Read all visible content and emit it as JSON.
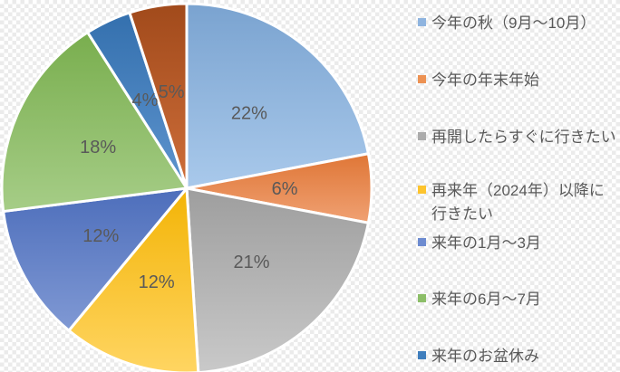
{
  "background": {
    "base_color": "#ffffff",
    "checker_color": "#ebebeb"
  },
  "text": {
    "percent_label_color": "#595959",
    "legend_text_color": "#595959"
  },
  "chart_data": {
    "type": "pie",
    "title": "",
    "start_angle_deg": 0,
    "direction": "clockwise",
    "legend_position": "right",
    "slices": [
      {
        "name": "今年の秋（9月〜10月）",
        "value": 22,
        "pct_label": "22%",
        "color_top": "#7AA3D0",
        "color_bottom": "#A9C9EB",
        "marker_color": "#8FB4DF",
        "legend_visible": true
      },
      {
        "name": "今年の年末年始",
        "value": 6,
        "pct_label": "6%",
        "color_top": "#DF7636",
        "color_bottom": "#F0A173",
        "marker_color": "#ED9253",
        "legend_visible": true
      },
      {
        "name": "再開したらすぐに行きたい",
        "value": 21,
        "pct_label": "21%",
        "color_top": "#9E9E9E",
        "color_bottom": "#C9C9C9",
        "marker_color": "#ABABAB",
        "legend_visible": true
      },
      {
        "name": "再来年（2024年）以降に\n行きたい",
        "value": 12,
        "pct_label": "12%",
        "color_top": "#F3B406",
        "color_bottom": "#FFD562",
        "marker_color": "#FDC42E",
        "legend_visible": true
      },
      {
        "name": "来年の1月〜3月",
        "value": 12,
        "pct_label": "12%",
        "color_top": "#4D6EBB",
        "color_bottom": "#8099D4",
        "marker_color": "#6D8BD0",
        "legend_visible": true
      },
      {
        "name": "来年の6月〜7月",
        "value": 18,
        "pct_label": "18%",
        "color_top": "#79AE4E",
        "color_bottom": "#A6CD87",
        "marker_color": "#8CBE68",
        "legend_visible": true
      },
      {
        "name": "来年のお盆休み",
        "value": 4,
        "pct_label": "4%",
        "color_top": "#3470AE",
        "color_bottom": "#5E94CE",
        "marker_color": "#3F7EBD",
        "legend_visible": true
      },
      {
        "name": "",
        "value": 5,
        "pct_label": "5%",
        "color_top": "#A14A1B",
        "color_bottom": "#CE6E3A",
        "marker_color": "#B65C28",
        "legend_visible": false
      }
    ]
  }
}
